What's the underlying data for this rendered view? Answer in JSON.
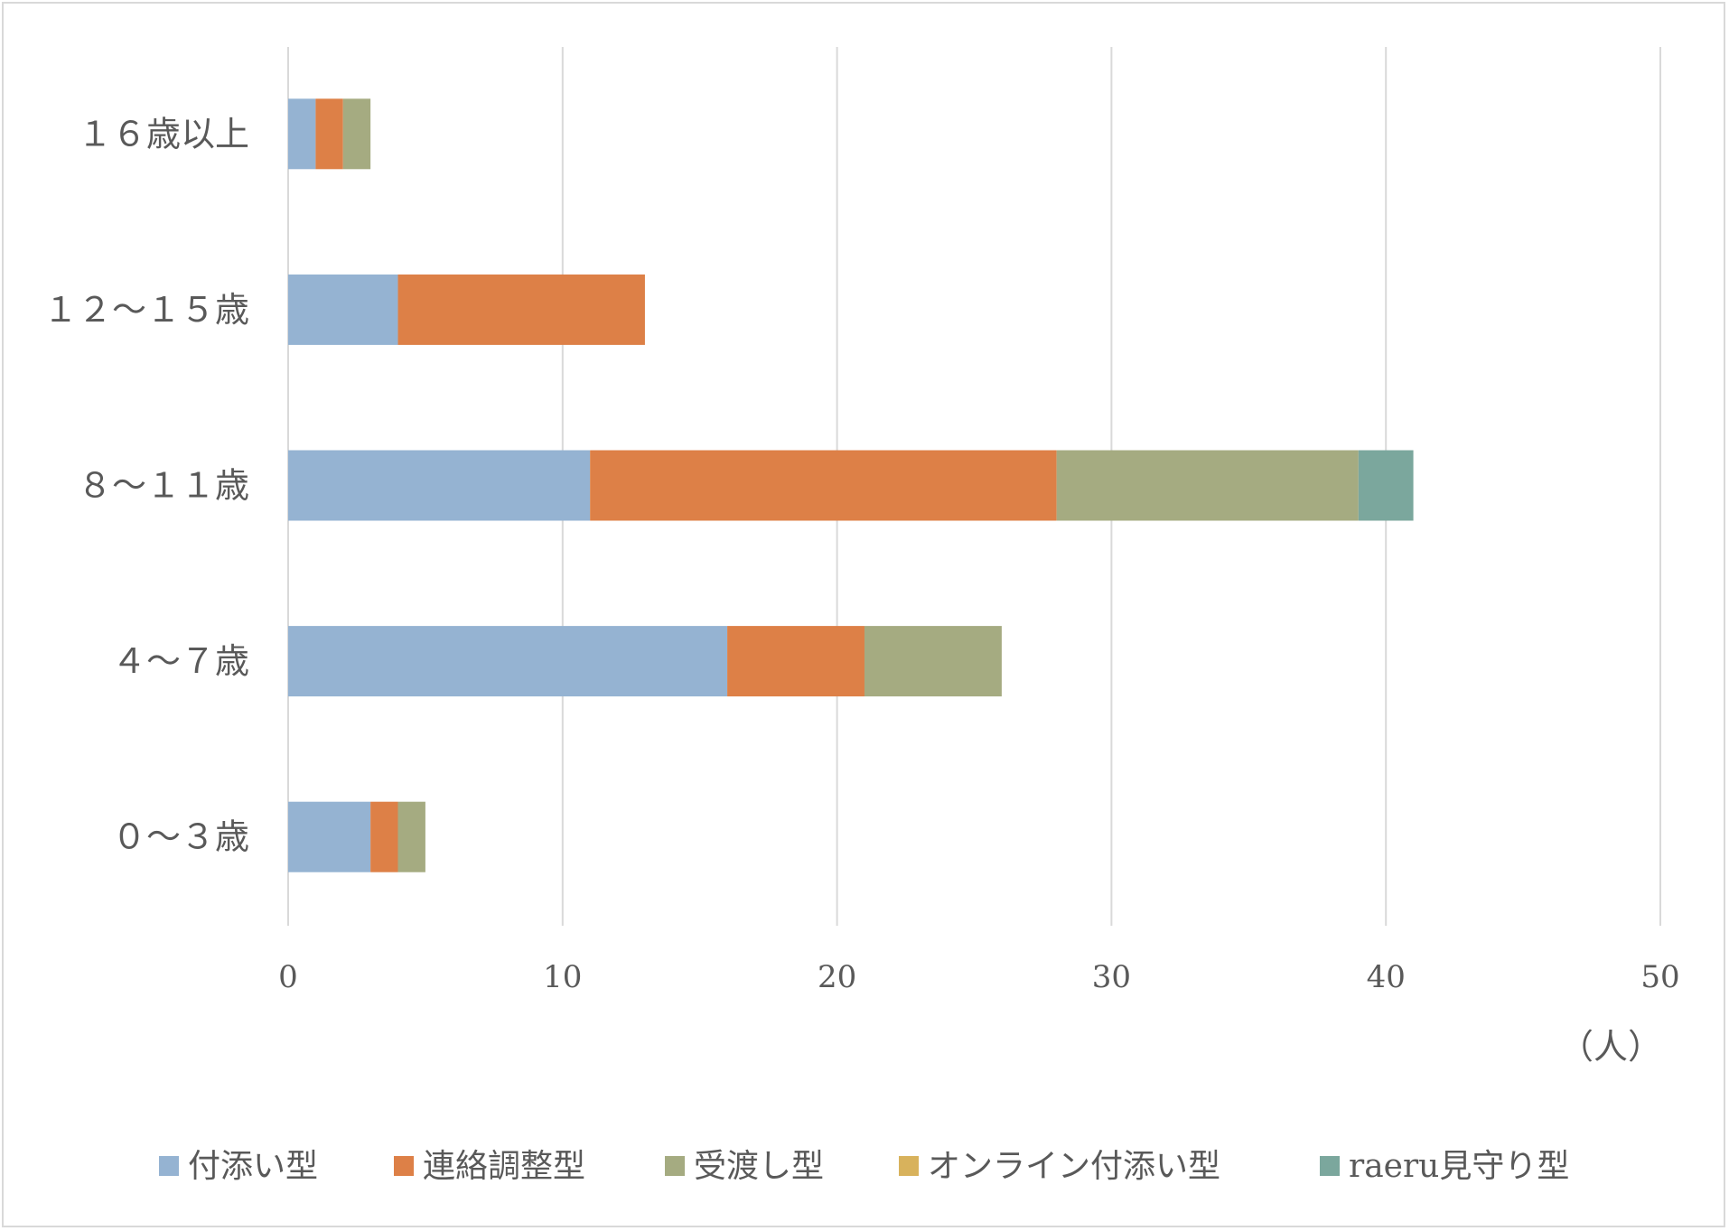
{
  "chart_data": {
    "type": "bar",
    "orientation": "horizontal",
    "stacked": true,
    "categories": [
      "０～３歳",
      "４～７歳",
      "８～１１歳",
      "１２～１５歳",
      "１６歳以上"
    ],
    "series": [
      {
        "name": "付添い型",
        "color": "#95b3d2",
        "values": [
          3,
          16,
          11,
          4,
          1
        ]
      },
      {
        "name": "連絡調整型",
        "color": "#dd8047",
        "values": [
          1,
          5,
          17,
          9,
          1
        ]
      },
      {
        "name": "受渡し型",
        "color": "#a5ab81",
        "values": [
          1,
          5,
          11,
          0,
          1
        ]
      },
      {
        "name": "オンライン付添い型",
        "color": "#d8b25c",
        "values": [
          0,
          0,
          0,
          0,
          0
        ]
      },
      {
        "name": "raeru見守り型",
        "color": "#7ba79d",
        "values": [
          0,
          0,
          2,
          0,
          0
        ]
      }
    ],
    "x_ticks": [
      "0",
      "10",
      "20",
      "30",
      "40",
      "50"
    ],
    "xlim": [
      0,
      50
    ],
    "x_unit_label": "（人）",
    "grid": "vertical",
    "legend_position": "bottom"
  }
}
